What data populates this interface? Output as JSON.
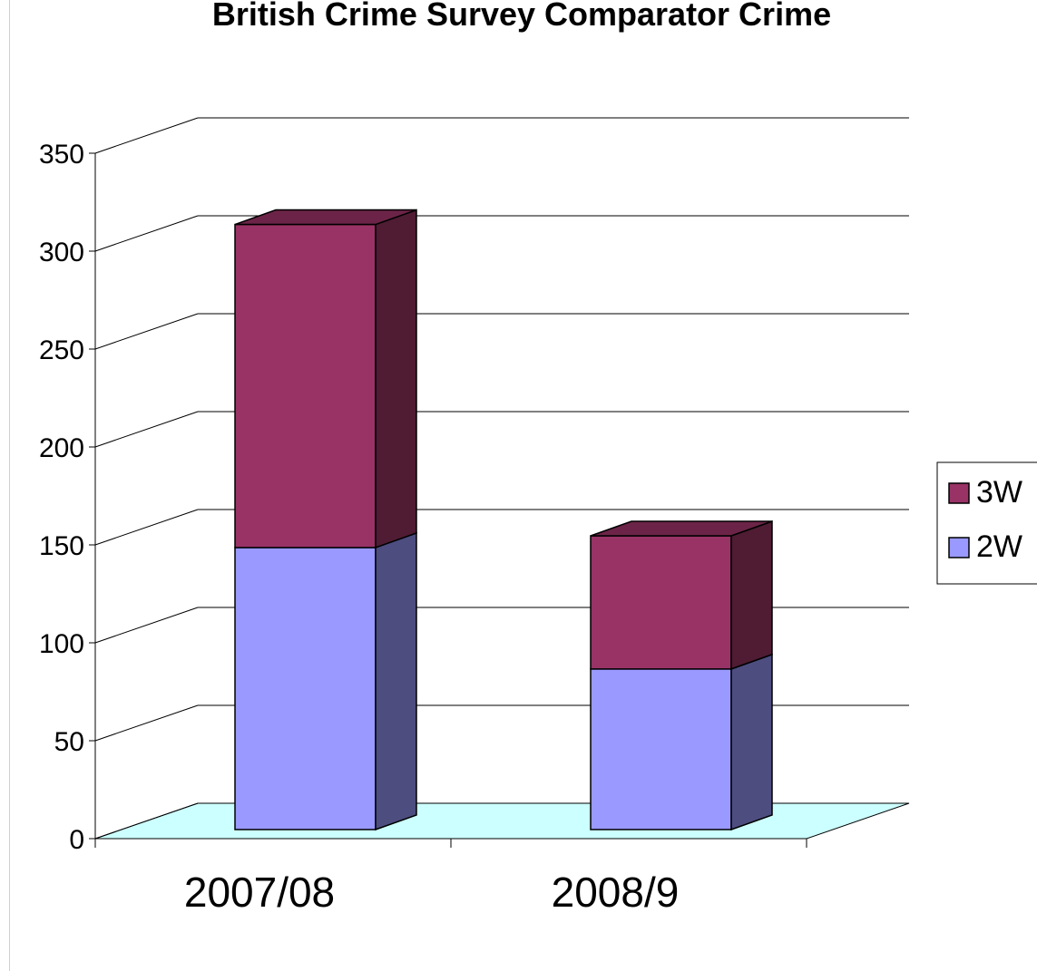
{
  "chart_data": {
    "type": "bar",
    "stacked": true,
    "three_d": true,
    "title": "British Crime Survey Comparator Crime",
    "categories": [
      "2007/08",
      "2008/9"
    ],
    "series": [
      {
        "name": "2W",
        "values": [
          144,
          82
        ]
      },
      {
        "name": "3W",
        "values": [
          165,
          68
        ]
      }
    ],
    "ylim": [
      0,
      350
    ],
    "yticks": [
      "0",
      "50",
      "100",
      "150",
      "200",
      "250",
      "300",
      "350"
    ],
    "grid": true,
    "legend": "right",
    "colors": {
      "3W_front": "#993366",
      "3W_side": "#4f1c33",
      "3W_top": "#6b2447",
      "2W_front": "#9999ff",
      "2W_side": "#4d4d80",
      "2W_top": "#7a7acc",
      "floor": "#ccffff"
    }
  }
}
